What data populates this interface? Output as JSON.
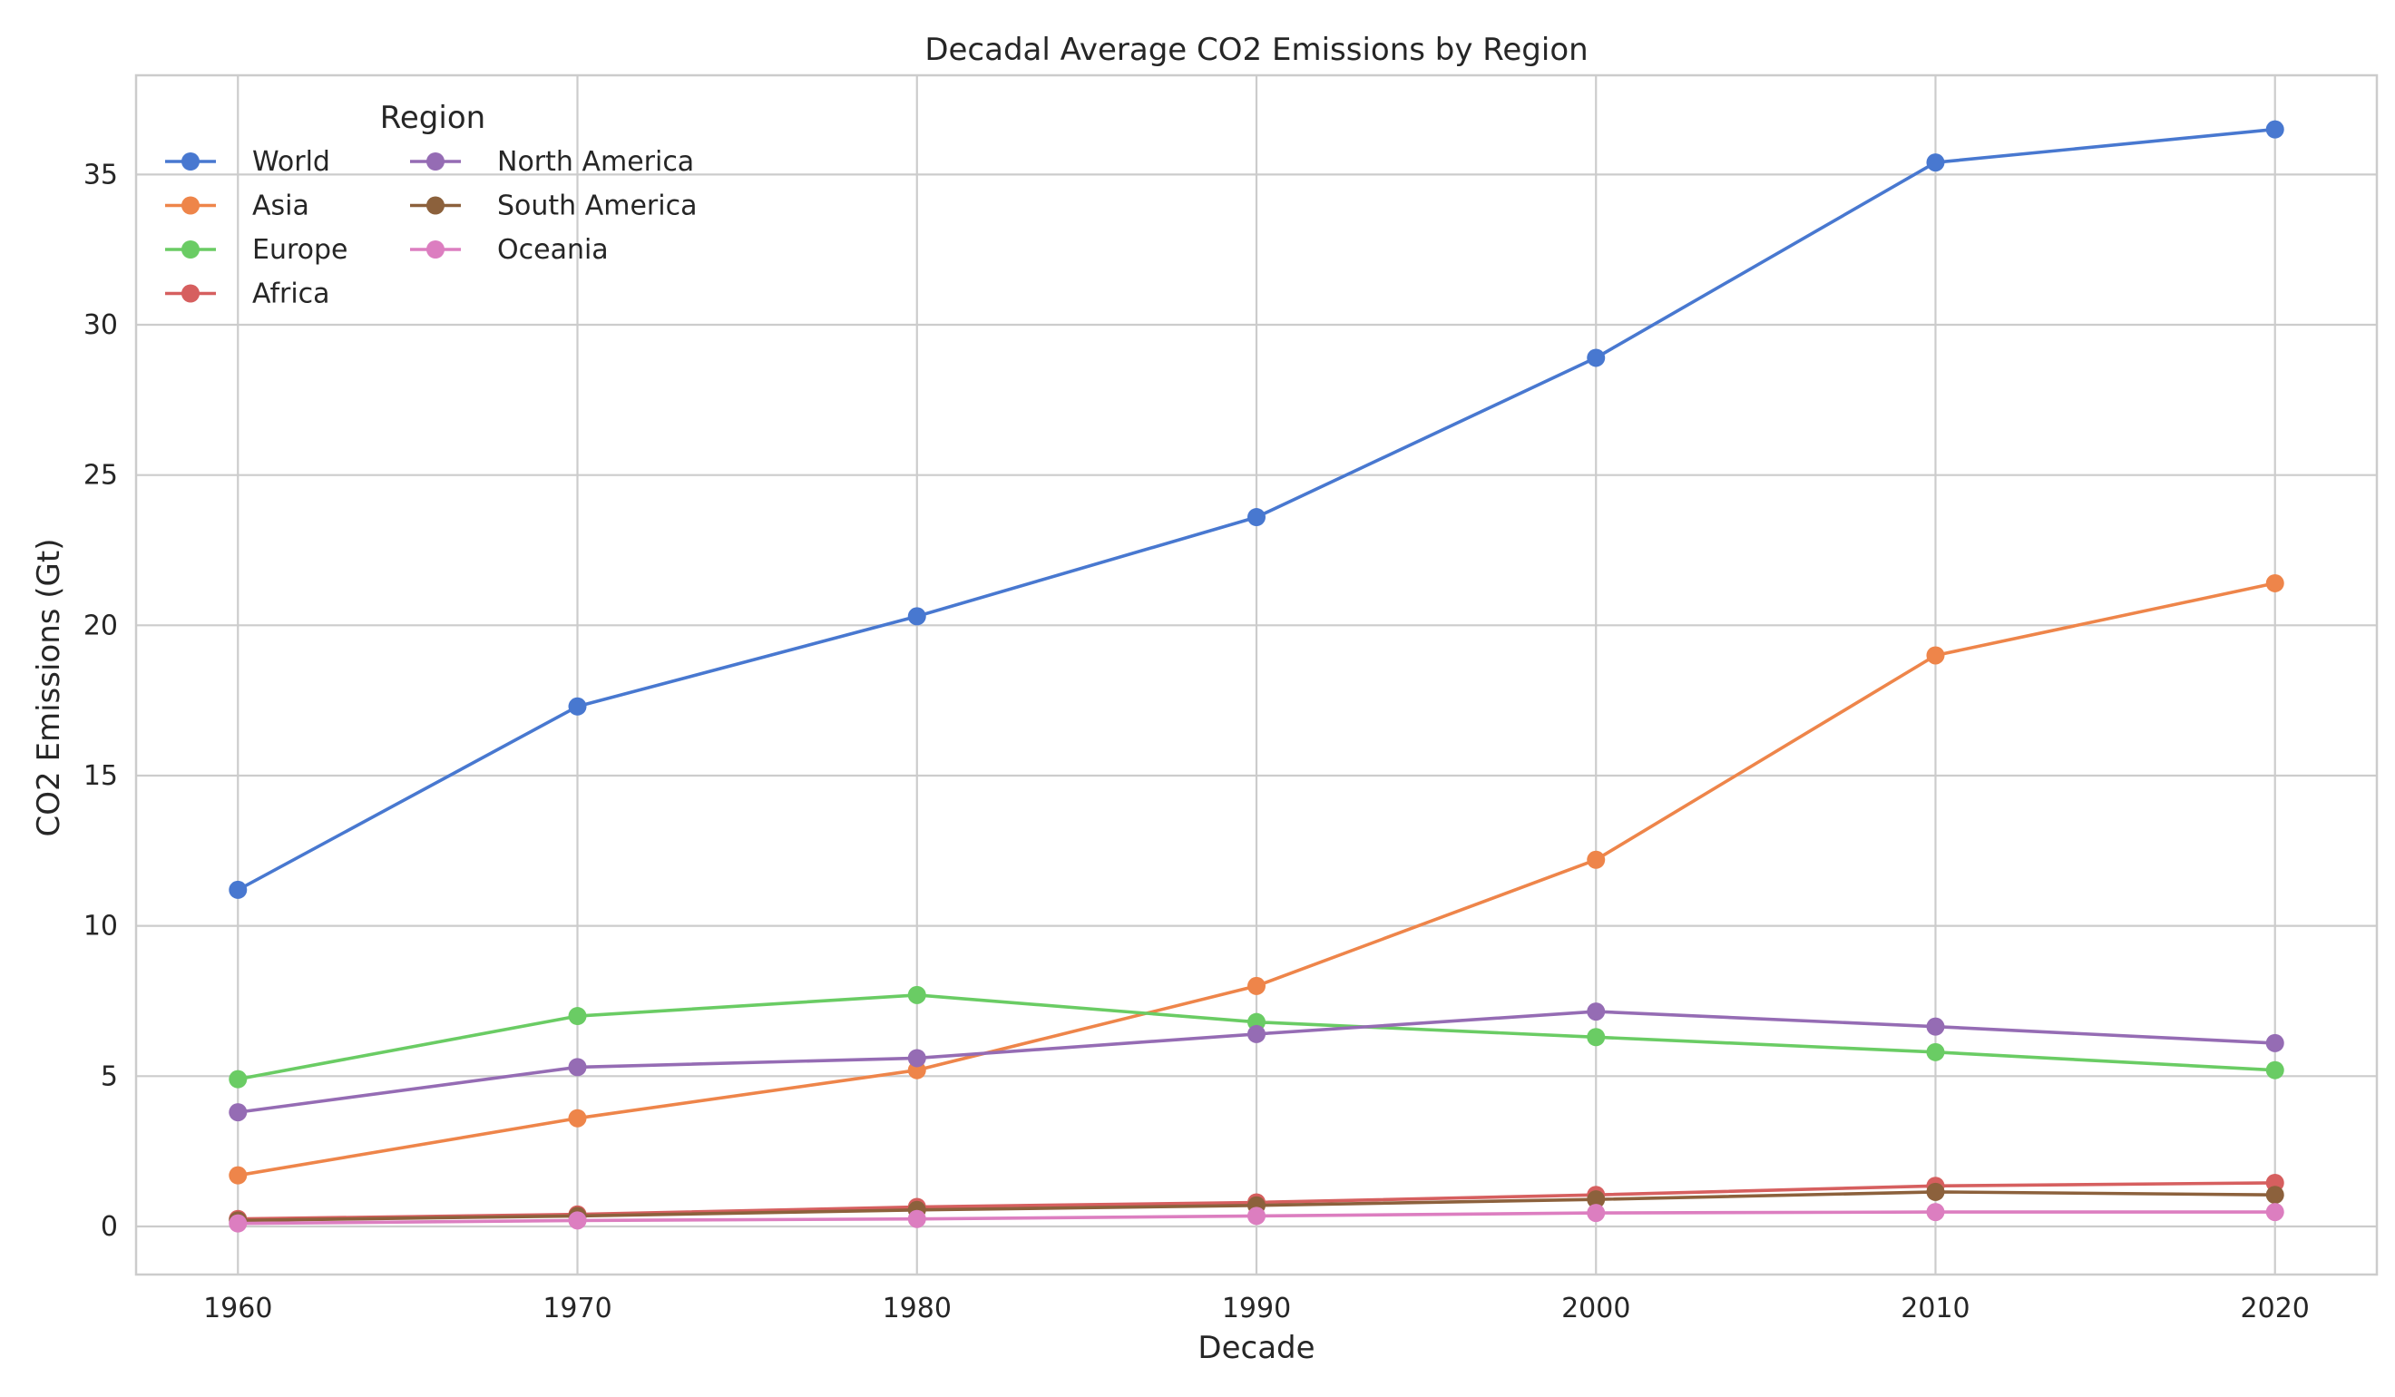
{
  "chart_data": {
    "type": "line",
    "title": "Decadal Average CO2 Emissions by Region",
    "xlabel": "Decade",
    "ylabel": "CO2 Emissions (Gt)",
    "x": [
      1960,
      1970,
      1980,
      1990,
      2000,
      2010,
      2020
    ],
    "x_tick_labels": [
      "1960",
      "1970",
      "1980",
      "1990",
      "2000",
      "2010",
      "2020"
    ],
    "y_ticks": [
      0,
      5,
      10,
      15,
      20,
      25,
      30,
      35
    ],
    "y_tick_labels": [
      "0",
      "5",
      "10",
      "15",
      "20",
      "25",
      "30",
      "35"
    ],
    "xlim": [
      1957,
      2023
    ],
    "ylim": [
      -1.6,
      38.3
    ],
    "grid": true,
    "legend": {
      "title": "Region",
      "placement": "top-left",
      "columns": 2
    },
    "series": [
      {
        "name": "World",
        "color": "#4878d0",
        "values": [
          11.2,
          17.3,
          20.3,
          23.6,
          28.9,
          35.4,
          36.5
        ]
      },
      {
        "name": "Asia",
        "color": "#ee854a",
        "values": [
          1.7,
          3.6,
          5.2,
          8.0,
          12.2,
          19.0,
          21.4
        ]
      },
      {
        "name": "Europe",
        "color": "#6acc64",
        "values": [
          4.9,
          7.0,
          7.7,
          6.8,
          6.3,
          5.8,
          5.2
        ]
      },
      {
        "name": "Africa",
        "color": "#d65f5f",
        "values": [
          0.25,
          0.4,
          0.65,
          0.8,
          1.05,
          1.35,
          1.45
        ]
      },
      {
        "name": "North America",
        "color": "#956cb4",
        "values": [
          3.8,
          5.3,
          5.6,
          6.4,
          7.15,
          6.65,
          6.1
        ]
      },
      {
        "name": "South America",
        "color": "#8c613c",
        "values": [
          0.2,
          0.35,
          0.55,
          0.7,
          0.9,
          1.15,
          1.05
        ]
      },
      {
        "name": "Oceania",
        "color": "#dc7ec0",
        "values": [
          0.1,
          0.2,
          0.25,
          0.35,
          0.45,
          0.48,
          0.48
        ]
      }
    ]
  }
}
